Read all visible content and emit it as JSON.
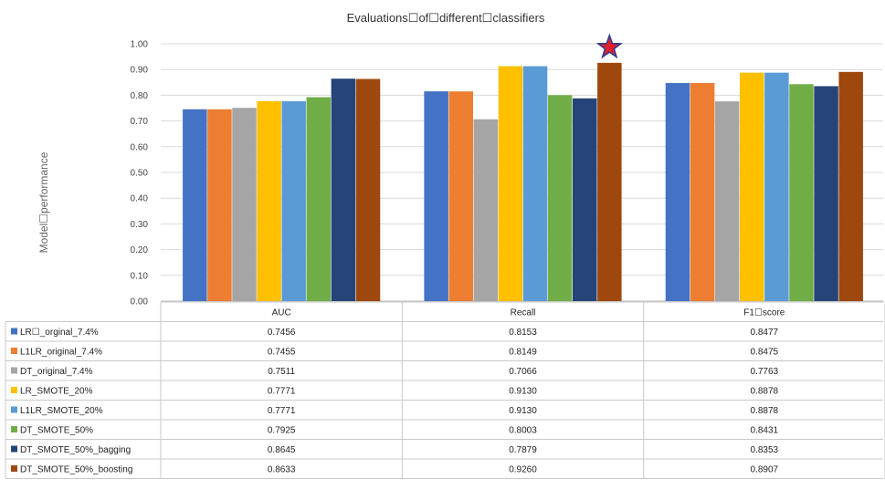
{
  "chart_data": {
    "type": "bar",
    "title": "Evaluations☐of☐different☐classifiers",
    "ylabel": "Model☐performance",
    "xlabel": "",
    "ylim": [
      0,
      1
    ],
    "yticks": [
      "0.00",
      "0.10",
      "0.20",
      "0.30",
      "0.40",
      "0.50",
      "0.60",
      "0.70",
      "0.80",
      "0.90",
      "1.00"
    ],
    "categories": [
      "AUC",
      "Recall",
      "F1☐score"
    ],
    "series": [
      {
        "name": "LR☐_orginal_7.4%",
        "color": "#4472C4",
        "values": [
          0.7456,
          0.8153,
          0.8477
        ],
        "labels": [
          "0.7456",
          "0.8153",
          "0.8477"
        ]
      },
      {
        "name": "L1LR_original_7.4%",
        "color": "#ED7D31",
        "values": [
          0.7455,
          0.8149,
          0.8475
        ],
        "labels": [
          "0.7455",
          "0.8149",
          "0.8475"
        ]
      },
      {
        "name": "DT_original_7.4%",
        "color": "#A5A5A5",
        "values": [
          0.7511,
          0.7066,
          0.7763
        ],
        "labels": [
          "0.7511",
          "0.7066",
          "0.7763"
        ]
      },
      {
        "name": "LR_SMOTE_20%",
        "color": "#FFC000",
        "values": [
          0.7771,
          0.913,
          0.8878
        ],
        "labels": [
          "0.7771",
          "0.9130",
          "0.8878"
        ]
      },
      {
        "name": "L1LR_SMOTE_20%",
        "color": "#5B9BD5",
        "values": [
          0.7771,
          0.913,
          0.8878
        ],
        "labels": [
          "0.7771",
          "0.9130",
          "0.8878"
        ]
      },
      {
        "name": "DT_SMOTE_50%",
        "color": "#70AD47",
        "values": [
          0.7925,
          0.8003,
          0.8431
        ],
        "labels": [
          "0.7925",
          "0.8003",
          "0.8431"
        ]
      },
      {
        "name": "DT_SMOTE_50%_bagging",
        "color": "#264478",
        "values": [
          0.8645,
          0.7879,
          0.8353
        ],
        "labels": [
          "0.8645",
          "0.7879",
          "0.8353"
        ]
      },
      {
        "name": "DT_SMOTE_50%_boosting",
        "color": "#9E480E",
        "values": [
          0.8633,
          0.926,
          0.8907
        ],
        "labels": [
          "0.8633",
          "0.9260",
          "0.8907"
        ]
      }
    ],
    "highlight": {
      "series": "DT_SMOTE_50%_boosting",
      "category": "Recall",
      "marker": "star",
      "fill": "#E0202A",
      "stroke": "#2F3C8C"
    },
    "grid": true,
    "legend": "data-table-below"
  }
}
